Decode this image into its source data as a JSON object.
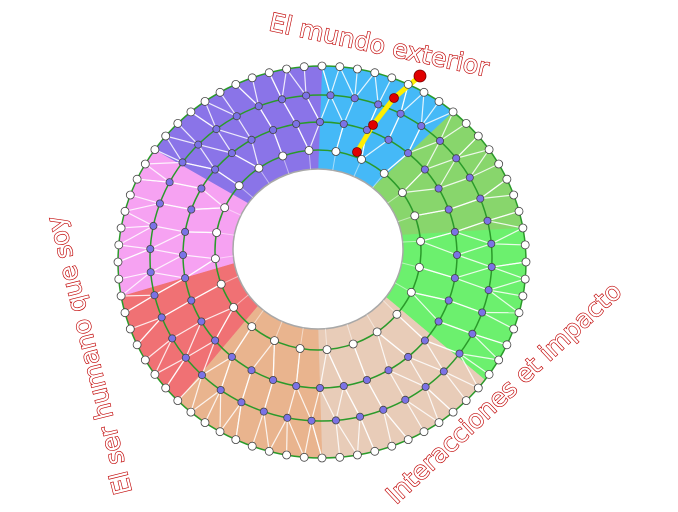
{
  "labels": {
    "top": "El mundo exterior",
    "left": "El ser humano que soy",
    "right": "Interacciones et impacto"
  },
  "colors": {
    "label_outline": "#c00000",
    "ring_line": "#2a9a2a",
    "mesh_line": "#ffffff",
    "outer_node": "#ffffff",
    "mid_node": "#7b72e6",
    "highlight_path": "#ffee00",
    "highlight_node": "#e00000"
  },
  "sectors": [
    {
      "name": "blue",
      "color": "#45b9f7"
    },
    {
      "name": "light-green",
      "color": "#88d66c"
    },
    {
      "name": "green",
      "color": "#6cf06e"
    },
    {
      "name": "light-beige",
      "color": "#e8ccb8"
    },
    {
      "name": "tan",
      "color": "#e9b48e"
    },
    {
      "name": "red",
      "color": "#f07174"
    },
    {
      "name": "pink",
      "color": "#f6a2f2"
    },
    {
      "name": "purple",
      "color": "#8a74e8"
    }
  ]
}
